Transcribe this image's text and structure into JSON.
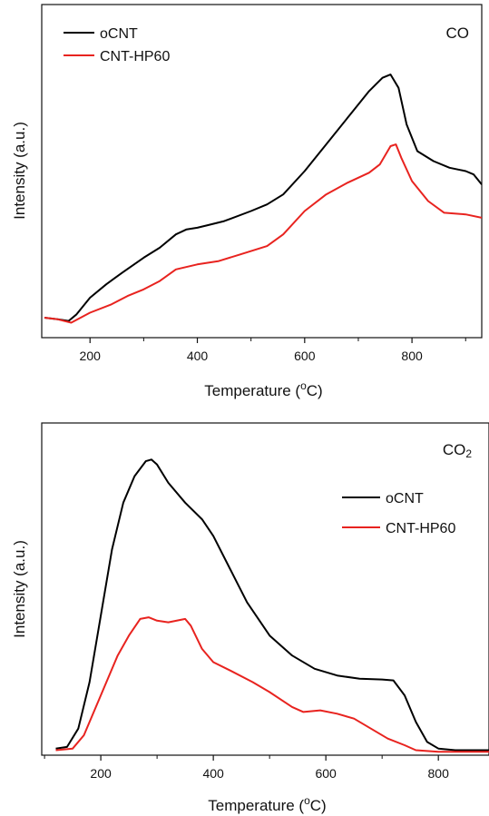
{
  "chart_data": [
    {
      "type": "line",
      "panel_label": "CO",
      "xlabel": "Temperature (",
      "xlabel_sup": "o",
      "xlabel_tail": "C)",
      "ylabel": "Intensity (a.u.)",
      "xlim": [
        110,
        930
      ],
      "ylim": [
        0,
        100
      ],
      "xticks": [
        200,
        400,
        600,
        800
      ],
      "xtick_labels": [
        "200",
        "400",
        "600",
        "800"
      ],
      "grid": false,
      "legend_position": "top-left",
      "series": [
        {
          "name": "oCNT",
          "color": "#000000",
          "points": [
            [
              115,
              6
            ],
            [
              140,
              5.5
            ],
            [
              160,
              5
            ],
            [
              175,
              7
            ],
            [
              200,
              12
            ],
            [
              230,
              16
            ],
            [
              260,
              19.5
            ],
            [
              300,
              24
            ],
            [
              330,
              27
            ],
            [
              360,
              31
            ],
            [
              380,
              32.5
            ],
            [
              400,
              33
            ],
            [
              420,
              33.8
            ],
            [
              450,
              35
            ],
            [
              500,
              38
            ],
            [
              530,
              40
            ],
            [
              560,
              43
            ],
            [
              600,
              50
            ],
            [
              640,
              58
            ],
            [
              680,
              66
            ],
            [
              720,
              74
            ],
            [
              745,
              78
            ],
            [
              760,
              79
            ],
            [
              775,
              75
            ],
            [
              790,
              64
            ],
            [
              810,
              56
            ],
            [
              840,
              53
            ],
            [
              870,
              51
            ],
            [
              900,
              50
            ],
            [
              915,
              49
            ],
            [
              930,
              46
            ]
          ]
        },
        {
          "name": "CNT-HP60",
          "color": "#e8231f",
          "points": [
            [
              115,
              6
            ],
            [
              140,
              5.5
            ],
            [
              165,
              4.5
            ],
            [
              200,
              7.5
            ],
            [
              240,
              10
            ],
            [
              270,
              12.5
            ],
            [
              300,
              14.5
            ],
            [
              330,
              17
            ],
            [
              360,
              20.5
            ],
            [
              400,
              22
            ],
            [
              440,
              23
            ],
            [
              480,
              25
            ],
            [
              530,
              27.5
            ],
            [
              560,
              31
            ],
            [
              600,
              38
            ],
            [
              640,
              43
            ],
            [
              680,
              46.5
            ],
            [
              720,
              49.5
            ],
            [
              740,
              52
            ],
            [
              760,
              57.5
            ],
            [
              770,
              58
            ],
            [
              780,
              54
            ],
            [
              800,
              47
            ],
            [
              830,
              41
            ],
            [
              860,
              37.5
            ],
            [
              900,
              37
            ],
            [
              930,
              36
            ]
          ]
        }
      ]
    },
    {
      "type": "line",
      "panel_label": "CO",
      "panel_label_sub": "2",
      "xlabel": "Temperature (",
      "xlabel_sup": "o",
      "xlabel_tail": "C)",
      "ylabel": "Intensity (a.u.)",
      "xlim": [
        95,
        890
      ],
      "ylim": [
        0,
        100
      ],
      "xticks": [
        200,
        400,
        600,
        800
      ],
      "xtick_labels": [
        "200",
        "400",
        "600",
        "800"
      ],
      "grid": false,
      "legend_position": "center-right",
      "series": [
        {
          "name": "oCNT",
          "color": "#000000",
          "points": [
            [
              120,
              2
            ],
            [
              140,
              2.5
            ],
            [
              160,
              8
            ],
            [
              180,
              22
            ],
            [
              200,
              42
            ],
            [
              220,
              62
            ],
            [
              240,
              76
            ],
            [
              260,
              84
            ],
            [
              280,
              88.5
            ],
            [
              290,
              89
            ],
            [
              300,
              87.5
            ],
            [
              320,
              82
            ],
            [
              350,
              76
            ],
            [
              380,
              71
            ],
            [
              400,
              66
            ],
            [
              430,
              56
            ],
            [
              460,
              46
            ],
            [
              500,
              36
            ],
            [
              540,
              30
            ],
            [
              580,
              26
            ],
            [
              620,
              24
            ],
            [
              660,
              23
            ],
            [
              700,
              22.8
            ],
            [
              720,
              22.5
            ],
            [
              740,
              18
            ],
            [
              760,
              10
            ],
            [
              780,
              4
            ],
            [
              800,
              2
            ],
            [
              830,
              1.5
            ],
            [
              890,
              1.5
            ]
          ]
        },
        {
          "name": "CNT-HP60",
          "color": "#e8231f",
          "points": [
            [
              120,
              1.5
            ],
            [
              150,
              2
            ],
            [
              170,
              6
            ],
            [
              200,
              18
            ],
            [
              230,
              30
            ],
            [
              250,
              36
            ],
            [
              270,
              41
            ],
            [
              285,
              41.5
            ],
            [
              300,
              40.5
            ],
            [
              320,
              40
            ],
            [
              350,
              41
            ],
            [
              360,
              39
            ],
            [
              380,
              32
            ],
            [
              400,
              28
            ],
            [
              430,
              25.5
            ],
            [
              470,
              22
            ],
            [
              500,
              19
            ],
            [
              540,
              14.5
            ],
            [
              560,
              13
            ],
            [
              590,
              13.5
            ],
            [
              620,
              12.5
            ],
            [
              650,
              11
            ],
            [
              680,
              8
            ],
            [
              710,
              5
            ],
            [
              740,
              3
            ],
            [
              760,
              1.5
            ],
            [
              800,
              1
            ],
            [
              890,
              1
            ]
          ]
        }
      ]
    }
  ]
}
